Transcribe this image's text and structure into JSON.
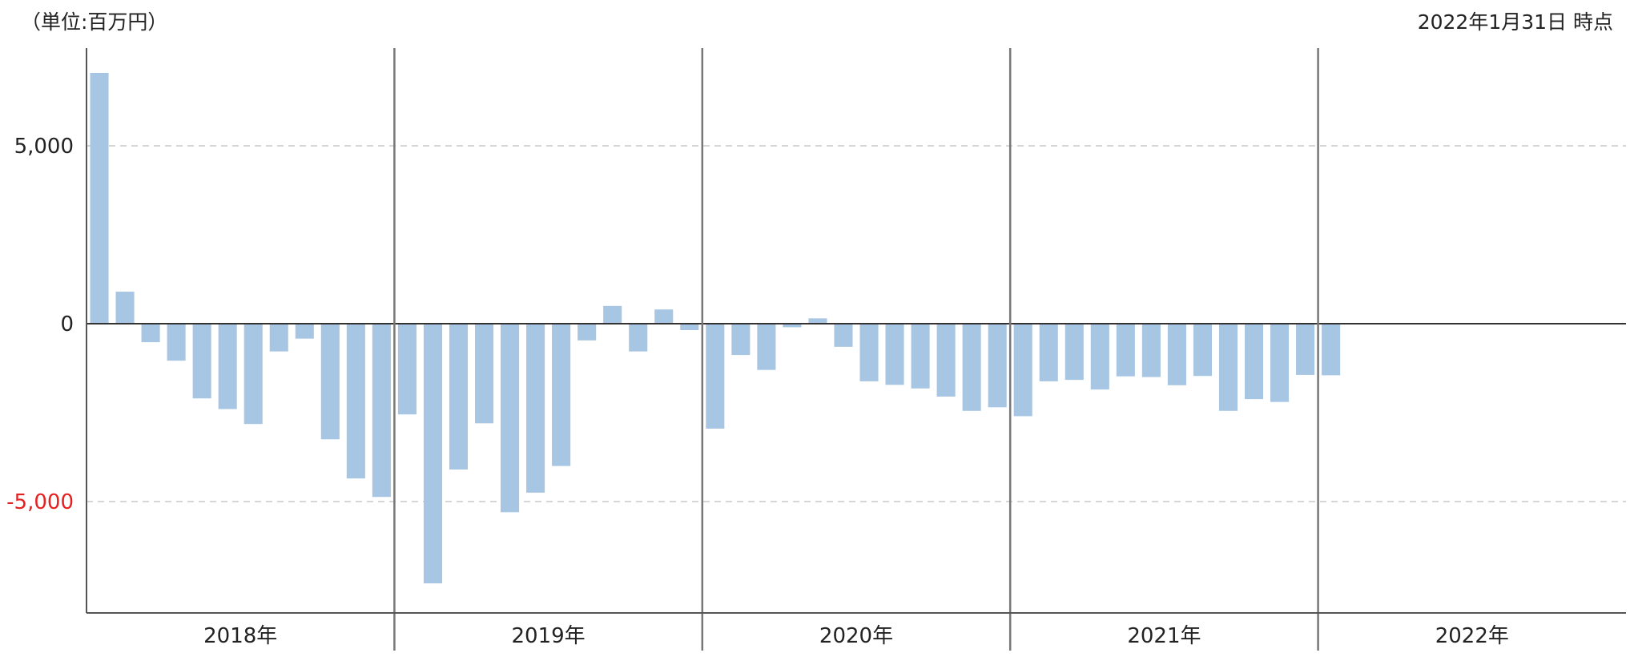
{
  "header": {
    "unit": "（単位:百万円）",
    "as_of": "2022年1月31日 時点"
  },
  "chart_data": {
    "type": "bar",
    "title": "",
    "xlabel": "",
    "ylabel": "",
    "ylim": [
      -8000,
      7500
    ],
    "yticks": [
      {
        "value": 5000,
        "label": "5,000"
      },
      {
        "value": 0,
        "label": "0"
      },
      {
        "value": -5000,
        "label": "-5,000"
      }
    ],
    "negative_tick_color": "#e81f1f",
    "bar_color": "#a7c6e3",
    "grid": "horizontal dashed at ±5,000",
    "years": [
      "2018年",
      "2019年",
      "2020年",
      "2021年",
      "2022年"
    ],
    "months_per_year": 12,
    "values": [
      [
        7050,
        900,
        -520,
        -1040,
        -2100,
        -2400,
        -2820,
        -780,
        -420,
        -3250,
        -4350,
        -4870
      ],
      [
        -2550,
        -7300,
        -4100,
        -2800,
        -5300,
        -4750,
        -4000,
        -470,
        500,
        -780,
        400,
        -180
      ],
      [
        -2950,
        -880,
        -1300,
        -100,
        150,
        -650,
        -1620,
        -1720,
        -1820,
        -2050,
        -2450,
        -2350
      ],
      [
        -2600,
        -1620,
        -1580,
        -1850,
        -1480,
        -1500,
        -1730,
        -1470,
        -2450,
        -2120,
        -2200,
        -1440
      ],
      [
        -1450
      ]
    ]
  }
}
